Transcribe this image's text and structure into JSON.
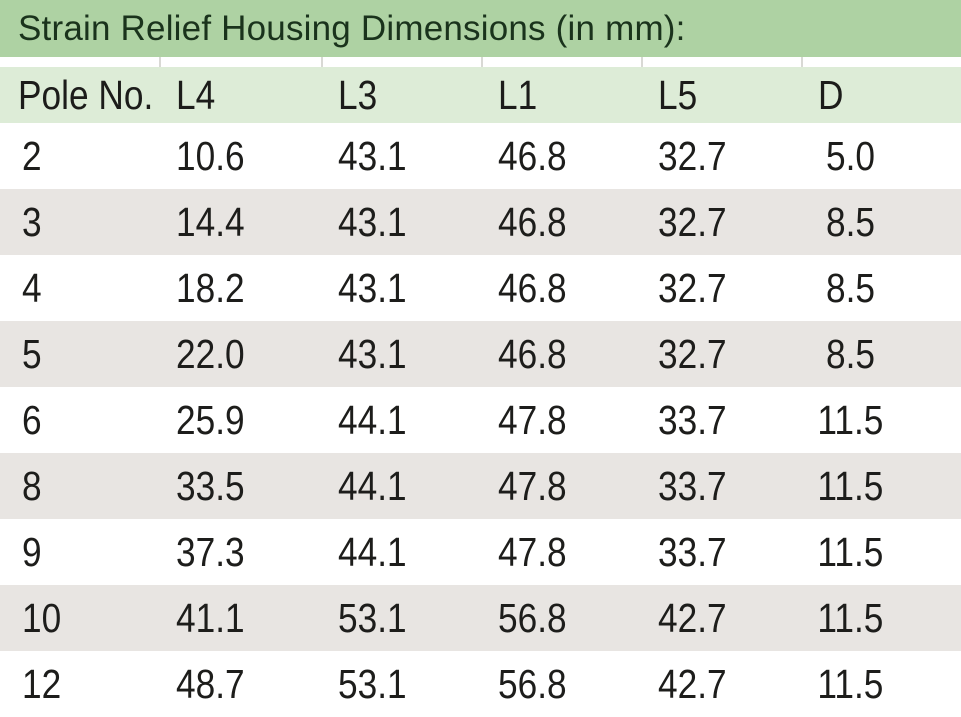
{
  "title": "Strain Relief Housing Dimensions (in mm):",
  "colors": {
    "title_bar_bg": "#aed2a3",
    "title_text": "#1a331c",
    "header_row_bg": "#ddecd7",
    "row_bg": "#ffffff",
    "row_alt_bg": "#e8e5e2",
    "body_text": "#1d1d1b",
    "separator": "#d9d9d5"
  },
  "table": {
    "columns": [
      "Pole No.",
      "L4",
      "L3",
      "L1",
      "L5",
      "D"
    ],
    "rows": [
      [
        "2",
        "10.6",
        "43.1",
        "46.8",
        "32.7",
        "5.0"
      ],
      [
        "3",
        "14.4",
        "43.1",
        "46.8",
        "32.7",
        "8.5"
      ],
      [
        "4",
        "18.2",
        "43.1",
        "46.8",
        "32.7",
        "8.5"
      ],
      [
        "5",
        "22.0",
        "43.1",
        "46.8",
        "32.7",
        "8.5"
      ],
      [
        "6",
        "25.9",
        "44.1",
        "47.8",
        "33.7",
        "11.5"
      ],
      [
        "8",
        "33.5",
        "44.1",
        "47.8",
        "33.7",
        "11.5"
      ],
      [
        "9",
        "37.3",
        "44.1",
        "47.8",
        "33.7",
        "11.5"
      ],
      [
        "10",
        "41.1",
        "53.1",
        "56.8",
        "42.7",
        "11.5"
      ],
      [
        "12",
        "48.7",
        "53.1",
        "56.8",
        "42.7",
        "11.5"
      ]
    ]
  }
}
